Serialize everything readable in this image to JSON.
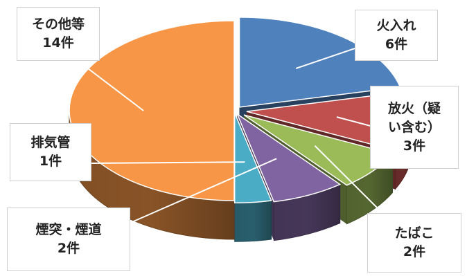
{
  "chart_data": {
    "type": "pie",
    "style": "3d-exploded",
    "count_unit": "件",
    "slices": [
      {
        "label": "火入れ",
        "value": 6,
        "count_label": "6件",
        "color": "#4F81BD"
      },
      {
        "label_lines": [
          "放火（疑",
          "い含む）"
        ],
        "label": "放火（疑い含む）",
        "value": 3,
        "count_label": "3件",
        "color": "#C0504D"
      },
      {
        "label": "たばこ",
        "value": 2,
        "count_label": "2件",
        "color": "#9BBB59"
      },
      {
        "label": "煙突・煙道",
        "value": 2,
        "count_label": "2件",
        "color": "#8064A2"
      },
      {
        "label": "排気管",
        "value": 1,
        "count_label": "1件",
        "color": "#4BACC6"
      },
      {
        "label": "その他等",
        "value": 14,
        "count_label": "14件",
        "color": "#F79646"
      }
    ],
    "legend": "none",
    "title": ""
  }
}
